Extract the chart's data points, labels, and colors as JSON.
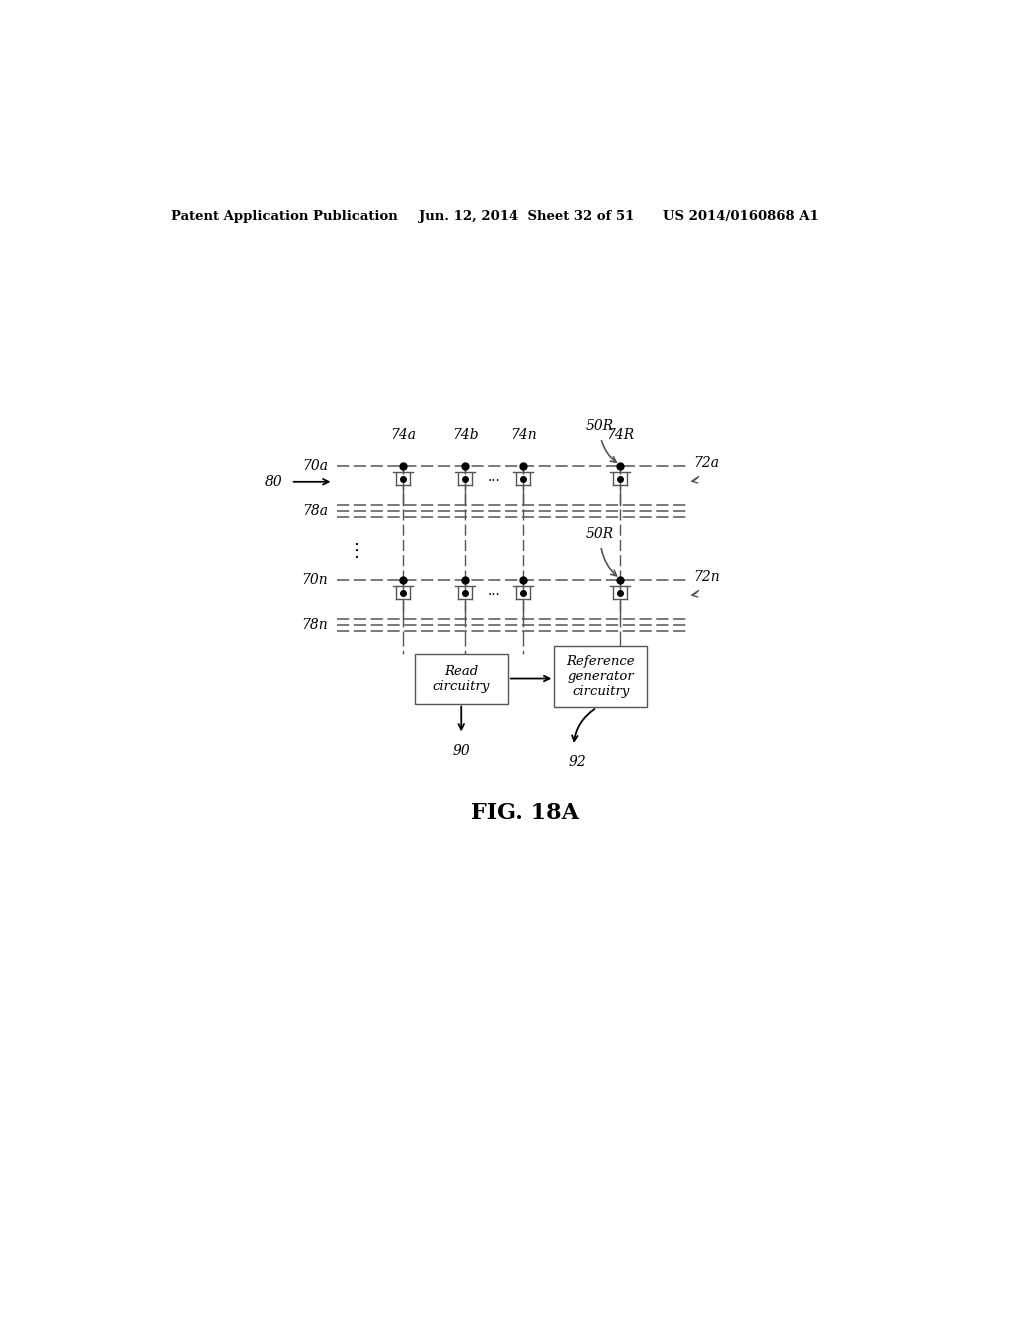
{
  "bg_color": "#ffffff",
  "fig_label": "FIG. 18A",
  "header_left": "Patent Application Publication",
  "header_mid": "Jun. 12, 2014  Sheet 32 of 51",
  "header_right": "US 2014/0160868 A1",
  "label_80": "80",
  "label_70a": "70a",
  "label_78a": "78a",
  "label_70n": "70n",
  "label_78n": "78n",
  "label_72a": "72a",
  "label_72n": "72n",
  "label_74a": "74a",
  "label_74b": "74b",
  "label_74n": "74n",
  "label_74R": "74R",
  "label_50R_top": "50R",
  "label_50R_mid": "50R",
  "label_90": "90",
  "label_92": "92",
  "box1_label": "Read\ncircuitry",
  "box2_label": "Reference\ngenerator\ncircuitry",
  "line_color": "#555555",
  "dot_color": "#000000",
  "text_color": "#000000"
}
